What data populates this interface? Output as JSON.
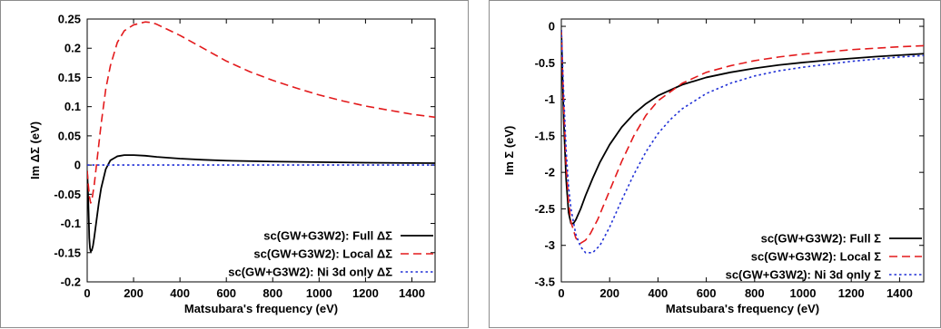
{
  "chart_data": [
    {
      "type": "line",
      "xlabel": "Matsubara's frequency (eV)",
      "ylabel": "Im ΔΣ (eV)",
      "xlim": [
        0,
        1500
      ],
      "ylim": [
        -0.2,
        0.25
      ],
      "xticks": [
        "0",
        "200",
        "400",
        "600",
        "800",
        "1000",
        "1200",
        "1400"
      ],
      "yticks": [
        "-0.2",
        "-0.15",
        "-0.1",
        "-0.05",
        "0",
        "0.05",
        "0.1",
        "0.15",
        "0.2",
        "0.25"
      ],
      "legend_position": "bottom-right",
      "series": [
        {
          "name": "sc(GW+G3W2): Full ΔΣ",
          "color": "#000000",
          "dash": "solid",
          "x": [
            0,
            3,
            6,
            9,
            12,
            15,
            20,
            25,
            30,
            40,
            50,
            60,
            80,
            100,
            130,
            160,
            200,
            250,
            300,
            400,
            500,
            600,
            800,
            1000,
            1200,
            1400,
            1500
          ],
          "y": [
            -0.01,
            -0.04,
            -0.08,
            -0.125,
            -0.142,
            -0.148,
            -0.146,
            -0.138,
            -0.125,
            -0.095,
            -0.065,
            -0.04,
            -0.007,
            0.008,
            0.015,
            0.017,
            0.017,
            0.016,
            0.014,
            0.011,
            0.009,
            0.0075,
            0.006,
            0.005,
            0.004,
            0.0035,
            0.0033
          ]
        },
        {
          "name": "sc(GW+G3W2): Local ΔΣ",
          "color": "#e31a1c",
          "dash": "dashed",
          "x": [
            0,
            5,
            10,
            15,
            20,
            30,
            40,
            50,
            60,
            80,
            100,
            130,
            160,
            200,
            250,
            280,
            300,
            400,
            500,
            600,
            700,
            800,
            900,
            1000,
            1100,
            1200,
            1300,
            1400,
            1500
          ],
          "y": [
            -0.01,
            -0.035,
            -0.055,
            -0.065,
            -0.06,
            -0.035,
            0.0,
            0.035,
            0.07,
            0.13,
            0.17,
            0.21,
            0.23,
            0.24,
            0.245,
            0.244,
            0.241,
            0.222,
            0.2,
            0.178,
            0.16,
            0.145,
            0.132,
            0.12,
            0.11,
            0.101,
            0.094,
            0.087,
            0.082
          ]
        },
        {
          "name": "sc(GW+G3W2): Ni 3d only ΔΣ",
          "color": "#1f2fd6",
          "dash": "dotted",
          "x": [
            0,
            100,
            200,
            400,
            600,
            800,
            1000,
            1200,
            1400,
            1500
          ],
          "y": [
            0,
            0,
            0,
            0,
            0,
            0,
            0,
            0,
            0,
            0
          ]
        }
      ]
    },
    {
      "type": "line",
      "xlabel": "Matsubara's frequency (eV)",
      "ylabel": "Im Σ (eV)",
      "xlim": [
        0,
        1500
      ],
      "ylim": [
        -3.5,
        0.1
      ],
      "xticks": [
        "0",
        "200",
        "400",
        "600",
        "800",
        "1000",
        "1200",
        "1400"
      ],
      "yticks": [
        "-3.5",
        "-3",
        "-2.5",
        "-2",
        "-1.5",
        "-1",
        "-0.5",
        "0"
      ],
      "legend_position": "bottom-right",
      "series": [
        {
          "name": "sc(GW+G3W2): Full Σ",
          "color": "#000000",
          "dash": "solid",
          "x": [
            0,
            5,
            10,
            20,
            30,
            40,
            50,
            60,
            80,
            100,
            130,
            160,
            200,
            250,
            300,
            350,
            400,
            500,
            600,
            700,
            800,
            900,
            1000,
            1100,
            1200,
            1300,
            1400,
            1500
          ],
          "y": [
            -0.05,
            -0.7,
            -1.3,
            -2.1,
            -2.55,
            -2.7,
            -2.7,
            -2.65,
            -2.5,
            -2.32,
            -2.08,
            -1.86,
            -1.62,
            -1.38,
            -1.2,
            -1.06,
            -0.95,
            -0.8,
            -0.7,
            -0.63,
            -0.575,
            -0.53,
            -0.495,
            -0.465,
            -0.44,
            -0.415,
            -0.395,
            -0.375
          ]
        },
        {
          "name": "sc(GW+G3W2): Local Σ",
          "color": "#e31a1c",
          "dash": "dashed",
          "x": [
            0,
            5,
            10,
            20,
            30,
            40,
            60,
            80,
            100,
            120,
            150,
            200,
            250,
            300,
            350,
            400,
            500,
            600,
            700,
            800,
            900,
            1000,
            1100,
            1200,
            1300,
            1400,
            1500
          ],
          "y": [
            -0.05,
            -0.6,
            -1.1,
            -1.9,
            -2.4,
            -2.68,
            -2.9,
            -2.97,
            -2.93,
            -2.84,
            -2.65,
            -2.25,
            -1.85,
            -1.5,
            -1.22,
            -1.02,
            -0.78,
            -0.63,
            -0.54,
            -0.47,
            -0.42,
            -0.38,
            -0.35,
            -0.32,
            -0.3,
            -0.28,
            -0.265
          ]
        },
        {
          "name": "sc(GW+G3W2): Ni 3d only Σ",
          "color": "#1f2fd6",
          "dash": "dotted",
          "x": [
            0,
            5,
            10,
            20,
            30,
            40,
            60,
            80,
            100,
            130,
            160,
            200,
            250,
            300,
            350,
            400,
            450,
            500,
            600,
            700,
            800,
            900,
            1000,
            1100,
            1200,
            1300,
            1400,
            1500
          ],
          "y": [
            -0.05,
            -0.5,
            -0.95,
            -1.7,
            -2.2,
            -2.5,
            -2.85,
            -3.02,
            -3.1,
            -3.1,
            -3.0,
            -2.75,
            -2.38,
            -2.03,
            -1.72,
            -1.47,
            -1.28,
            -1.13,
            -0.92,
            -0.78,
            -0.68,
            -0.61,
            -0.56,
            -0.52,
            -0.48,
            -0.45,
            -0.42,
            -0.4
          ]
        }
      ]
    }
  ]
}
